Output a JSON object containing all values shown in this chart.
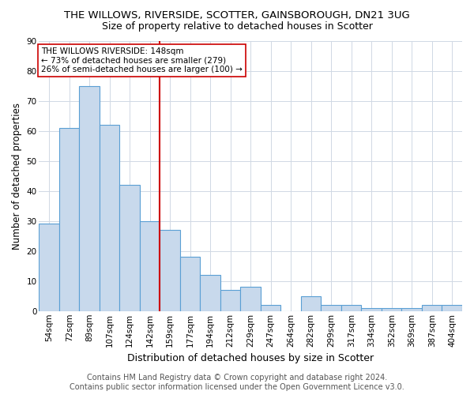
{
  "title": "THE WILLOWS, RIVERSIDE, SCOTTER, GAINSBOROUGH, DN21 3UG",
  "subtitle": "Size of property relative to detached houses in Scotter",
  "xlabel": "Distribution of detached houses by size in Scotter",
  "ylabel": "Number of detached properties",
  "categories": [
    "54sqm",
    "72sqm",
    "89sqm",
    "107sqm",
    "124sqm",
    "142sqm",
    "159sqm",
    "177sqm",
    "194sqm",
    "212sqm",
    "229sqm",
    "247sqm",
    "264sqm",
    "282sqm",
    "299sqm",
    "317sqm",
    "334sqm",
    "352sqm",
    "369sqm",
    "387sqm",
    "404sqm"
  ],
  "values": [
    29,
    61,
    75,
    62,
    42,
    30,
    27,
    18,
    12,
    7,
    8,
    2,
    0,
    5,
    2,
    2,
    1,
    1,
    1,
    2,
    2
  ],
  "bar_color": "#c8d9ec",
  "bar_edge_color": "#5a9fd4",
  "property_line_x": 5.5,
  "property_line_color": "#cc0000",
  "annotation_line1": "THE WILLOWS RIVERSIDE: 148sqm",
  "annotation_line2": "← 73% of detached houses are smaller (279)",
  "annotation_line3": "26% of semi-detached houses are larger (100) →",
  "annotation_box_color": "#ffffff",
  "annotation_box_edge": "#cc0000",
  "ylim": [
    0,
    90
  ],
  "yticks": [
    0,
    10,
    20,
    30,
    40,
    50,
    60,
    70,
    80,
    90
  ],
  "footer_line1": "Contains HM Land Registry data © Crown copyright and database right 2024.",
  "footer_line2": "Contains public sector information licensed under the Open Government Licence v3.0.",
  "grid_color": "#d0d8e4",
  "bg_color": "#ffffff",
  "title_fontsize": 9.5,
  "subtitle_fontsize": 9,
  "xlabel_fontsize": 9,
  "ylabel_fontsize": 8.5,
  "tick_fontsize": 7.5,
  "footer_fontsize": 7,
  "annotation_fontsize": 7.5
}
